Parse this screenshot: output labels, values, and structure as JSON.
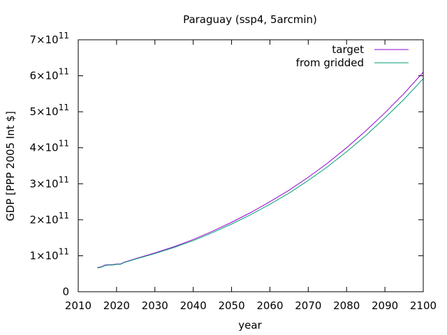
{
  "chart_data": {
    "type": "line",
    "title": "Paraguay (ssp4, 5arcmin)",
    "xlabel": "year",
    "ylabel": "GDP [PPP 2005 Int $]",
    "xlim": [
      2010,
      2100
    ],
    "ylim": [
      0,
      700000000000
    ],
    "x_ticks": [
      2010,
      2020,
      2030,
      2040,
      2050,
      2060,
      2070,
      2080,
      2090,
      2100
    ],
    "x_tick_labels": [
      "2010",
      "2020",
      "2030",
      "2040",
      "2050",
      "2060",
      "2070",
      "2080",
      "2090",
      "2100"
    ],
    "y_ticks": [
      {
        "value": 0,
        "mantissa": "0",
        "exp": ""
      },
      {
        "value": 100000000000,
        "mantissa": "1×10",
        "exp": "11"
      },
      {
        "value": 200000000000,
        "mantissa": "2×10",
        "exp": "11"
      },
      {
        "value": 300000000000,
        "mantissa": "3×10",
        "exp": "11"
      },
      {
        "value": 400000000000,
        "mantissa": "4×10",
        "exp": "11"
      },
      {
        "value": 500000000000,
        "mantissa": "5×10",
        "exp": "11"
      },
      {
        "value": 600000000000,
        "mantissa": "6×10",
        "exp": "11"
      },
      {
        "value": 700000000000,
        "mantissa": "7×10",
        "exp": "11"
      }
    ],
    "grid": false,
    "legend_position": "top-right",
    "series": [
      {
        "name": "target",
        "color": "#9400d3",
        "x": [
          2015,
          2016,
          2017,
          2018,
          2019,
          2020,
          2021,
          2022,
          2025,
          2030,
          2035,
          2040,
          2045,
          2050,
          2055,
          2060,
          2065,
          2070,
          2075,
          2080,
          2085,
          2090,
          2095,
          2100
        ],
        "y": [
          67000000000,
          69000000000,
          74000000000,
          75000000000,
          75000000000,
          77000000000,
          77000000000,
          82000000000,
          92000000000,
          108000000000,
          125000000000,
          145000000000,
          168000000000,
          193000000000,
          220000000000,
          250000000000,
          282000000000,
          318000000000,
          357000000000,
          400000000000,
          447000000000,
          497000000000,
          551000000000,
          610000000000
        ]
      },
      {
        "name": "from gridded",
        "color": "#009e73",
        "x": [
          2015,
          2016,
          2017,
          2018,
          2019,
          2020,
          2021,
          2022,
          2025,
          2030,
          2035,
          2040,
          2045,
          2050,
          2055,
          2060,
          2065,
          2070,
          2075,
          2080,
          2085,
          2090,
          2095,
          2100
        ],
        "y": [
          66000000000,
          68000000000,
          73000000000,
          74000000000,
          74000000000,
          76000000000,
          76000000000,
          81000000000,
          91000000000,
          106000000000,
          123000000000,
          142000000000,
          164000000000,
          188000000000,
          214000000000,
          243000000000,
          274000000000,
          309000000000,
          347000000000,
          389000000000,
          434000000000,
          483000000000,
          535000000000,
          592000000000
        ]
      }
    ]
  }
}
